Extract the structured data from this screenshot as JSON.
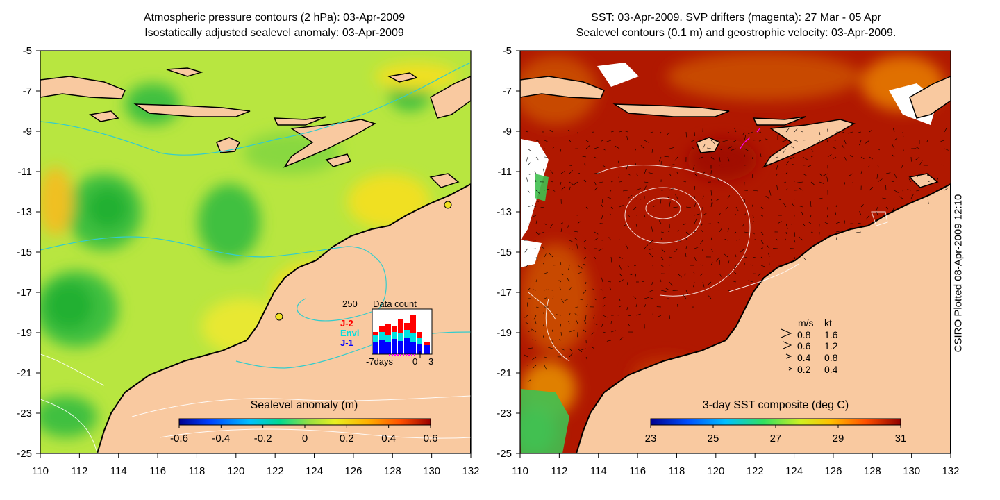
{
  "left_panel": {
    "title_line1": "Atmospheric pressure contours (2 hPa): 03-Apr-2009",
    "title_line2": "Isostatically adjusted sealevel anomaly: 03-Apr-2009",
    "colorbar_label": "Sealevel anomaly (m)",
    "colorbar_ticks": [
      "-0.6",
      "-0.4",
      "-0.2",
      "0",
      "0.2",
      "0.4",
      "0.6"
    ],
    "inset": {
      "title": "Data count",
      "ymax_label": "250",
      "legend": [
        {
          "label": "J-2",
          "color": "#ff0000"
        },
        {
          "label": "Envi",
          "color": "#00e0e0"
        },
        {
          "label": "J-1",
          "color": "#0000ff"
        }
      ],
      "x_labels": [
        "-7days",
        "0",
        "3"
      ]
    }
  },
  "right_panel": {
    "title_line1": "SST: 03-Apr-2009. SVP drifters (magenta): 27 Mar - 05 Apr",
    "title_line2": "Sealevel contours (0.1 m) and geostrophic velocity: 03-Apr-2009.",
    "colorbar_label": "3-day SST composite (deg C)",
    "colorbar_ticks": [
      "23",
      "25",
      "27",
      "29",
      "31"
    ],
    "velocity_legend": {
      "header_ms": "m/s",
      "header_kt": "kt",
      "rows": [
        {
          "ms": "0.8",
          "kt": "1.6"
        },
        {
          "ms": "0.6",
          "kt": "1.2"
        },
        {
          "ms": "0.4",
          "kt": "0.8"
        },
        {
          "ms": "0.2",
          "kt": "0.4"
        }
      ]
    }
  },
  "axes": {
    "y_labels": [
      "-5",
      "-7",
      "-9",
      "-11",
      "-13",
      "-15",
      "-17",
      "-19",
      "-21",
      "-23",
      "-25"
    ],
    "x_labels": [
      "110",
      "112",
      "114",
      "116",
      "118",
      "120",
      "122",
      "124",
      "126",
      "128",
      "130",
      "132"
    ]
  },
  "credit": "CSIRO Plotted 08-Apr-2009 12:10",
  "colors": {
    "land": "#f9c9a0",
    "sea_anomaly_base": "#b8e640",
    "sst_base": "#b01800",
    "contour_cyan": "#33cccc",
    "drifter_magenta": "#ff00ff"
  }
}
